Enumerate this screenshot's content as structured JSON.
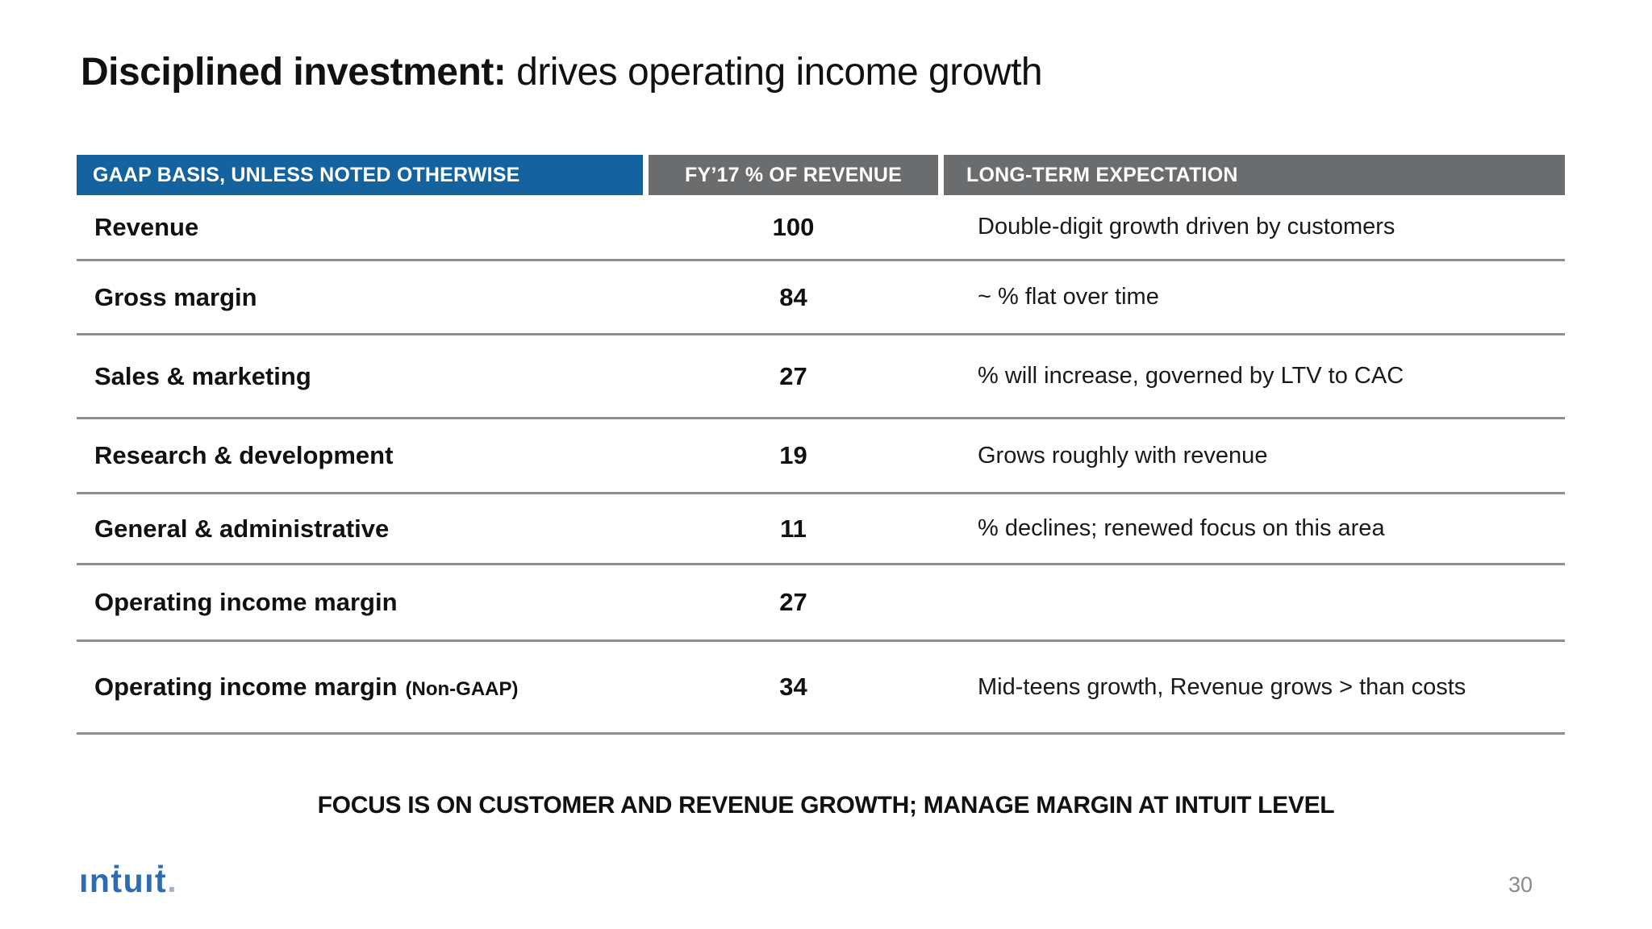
{
  "slide": {
    "title_bold": "Disciplined investment:",
    "title_rest": " drives operating income growth",
    "footer_note": "FOCUS IS ON CUSTOMER AND REVENUE GROWTH; MANAGE MARGIN AT INTUIT LEVEL",
    "logo_text": "ınṫuıṫ",
    "logo_dot": ".",
    "page_number": "30"
  },
  "table": {
    "headers": [
      {
        "label": "GAAP BASIS, UNLESS NOTED OTHERWISE"
      },
      {
        "label": "FY’17 % OF REVENUE"
      },
      {
        "label": "LONG-TERM EXPECTATION"
      }
    ],
    "rows": [
      {
        "label": "Revenue",
        "value": "100",
        "expectation": "Double-digit growth driven by customers"
      },
      {
        "label": "Gross margin",
        "value": "84",
        "expectation": "~ % flat over time"
      },
      {
        "label": "Sales & marketing",
        "value": "27",
        "expectation": "% will increase, governed by LTV to CAC"
      },
      {
        "label": "Research & development",
        "value": "19",
        "expectation": "Grows roughly with revenue"
      },
      {
        "label": "General & administrative",
        "value": "11",
        "expectation": "% declines; renewed focus on this area"
      },
      {
        "label": "Operating income margin",
        "value": "27",
        "expectation": ""
      },
      {
        "label": "Operating income margin",
        "suffix": "(Non-GAAP)",
        "value": "34",
        "expectation": "Mid-teens growth, Revenue grows > than costs"
      }
    ]
  },
  "colors": {
    "header_blue": "#15639E",
    "header_gray": "#6A6C6E",
    "separator_gray": "#8F8F8F",
    "logo_blue": "#2B6CB3",
    "page_number_gray": "#8A8A8A"
  }
}
